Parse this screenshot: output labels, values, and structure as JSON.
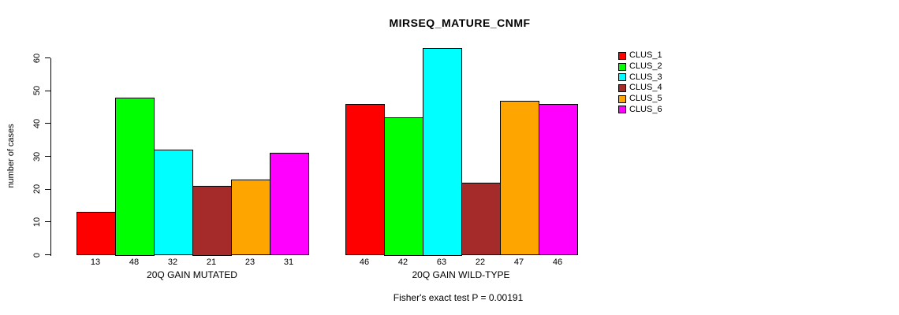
{
  "title": "MIRSEQ_MATURE_CNMF",
  "ylabel": "number of cases",
  "footer": "Fisher's exact test P = 0.00191",
  "legend": {
    "items": [
      {
        "label": "CLUS_1",
        "color": "#FF0000"
      },
      {
        "label": "CLUS_2",
        "color": "#00FF00"
      },
      {
        "label": "CLUS_3",
        "color": "#00FFFF"
      },
      {
        "label": "CLUS_4",
        "color": "#A52A2A"
      },
      {
        "label": "CLUS_5",
        "color": "#FFA500"
      },
      {
        "label": "CLUS_6",
        "color": "#FF00FF"
      }
    ]
  },
  "chart_data": {
    "type": "bar",
    "title": "MIRSEQ_MATURE_CNMF",
    "xlabel": "",
    "ylabel": "number of cases",
    "ylim": [
      0,
      60
    ],
    "yticks": [
      0,
      10,
      20,
      30,
      40,
      50,
      60
    ],
    "grid": false,
    "legend_position": "right",
    "series_labels": [
      "CLUS_1",
      "CLUS_2",
      "CLUS_3",
      "CLUS_4",
      "CLUS_5",
      "CLUS_6"
    ],
    "series_colors": [
      "#FF0000",
      "#00FF00",
      "#00FFFF",
      "#A52A2A",
      "#FFA500",
      "#FF00FF"
    ],
    "groups": [
      {
        "label": "20Q GAIN MUTATED",
        "values": [
          13,
          48,
          32,
          21,
          23,
          31
        ]
      },
      {
        "label": "20Q GAIN WILD-TYPE",
        "values": [
          46,
          42,
          63,
          22,
          47,
          46
        ]
      }
    ],
    "bar_value_labels_shown": true,
    "annotation": "Fisher's exact test P = 0.00191"
  }
}
